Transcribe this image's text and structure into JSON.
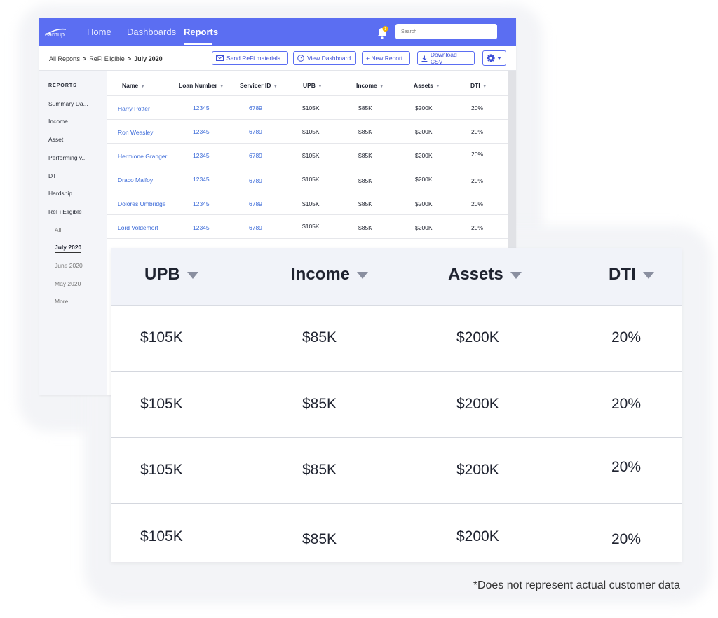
{
  "app": {
    "logo_text": "earnup",
    "nav": [
      "Home",
      "Dashboards",
      "Reports"
    ],
    "search_placeholder": "Search",
    "notification_count": "1"
  },
  "breadcrumb": [
    "All Reports",
    "ReFi Eligible",
    "July 2020"
  ],
  "toolbar": {
    "send": "Send ReFi materials",
    "view": "View Dashboard",
    "new": "+ New Report",
    "download": "Download CSV"
  },
  "sidebar": {
    "heading": "REPORTS",
    "items": [
      "Summary Da...",
      "Income",
      "Asset",
      "Performing v...",
      "DTI",
      "Hardship",
      "ReFi Eligible"
    ],
    "subitems": [
      "All",
      "July 2020",
      "June 2020",
      "May 2020",
      "More"
    ]
  },
  "table": {
    "columns": [
      "Name",
      "Loan Number",
      "Servicer ID",
      "UPB",
      "Income",
      "Assets",
      "DTI"
    ],
    "rows": [
      [
        "Harry Potter",
        "12345",
        "6789",
        "$105K",
        "$85K",
        "$200K",
        "20%"
      ],
      [
        "Ron Weasley",
        "12345",
        "6789",
        "$105K",
        "$85K",
        "$200K",
        "20%"
      ],
      [
        "Hermione Granger",
        "12345",
        "6789",
        "$105K",
        "$85K",
        "$200K",
        "20%"
      ],
      [
        "Draco Malfoy",
        "12345",
        "6789",
        "$105K",
        "$85K",
        "$200K",
        "20%"
      ],
      [
        "Dolores Umbridge",
        "12345",
        "6789",
        "$105K",
        "$85K",
        "$200K",
        "20%"
      ],
      [
        "Lord Voldemort",
        "12345",
        "6789",
        "$105K",
        "$85K",
        "$200K",
        "20%"
      ]
    ]
  },
  "zoom": {
    "columns": [
      "UPB",
      "Income",
      "Assets",
      "DTI"
    ],
    "rows": [
      [
        "$105K",
        "$85K",
        "$200K",
        "20%"
      ],
      [
        "$105K",
        "$85K",
        "$200K",
        "20%"
      ],
      [
        "$105K",
        "$85K",
        "$200K",
        "20%"
      ],
      [
        "$105K",
        "$85K",
        "$200K",
        "20%"
      ]
    ]
  },
  "disclaimer": "*Does not represent actual customer data",
  "colors": {
    "brand": "#5b6ef2",
    "link": "#3b6ad8",
    "badge": "#f5b400"
  }
}
